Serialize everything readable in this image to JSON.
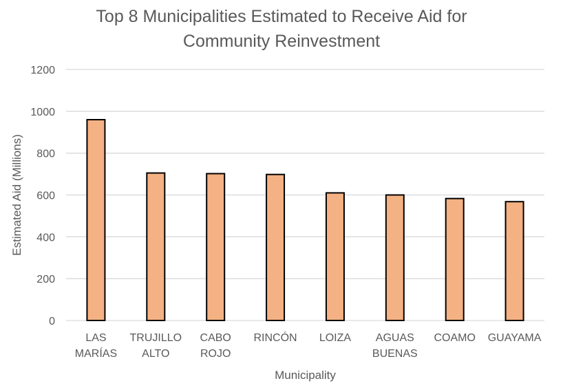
{
  "chart_data": {
    "type": "bar",
    "title_lines": [
      "Top 8 Municipalities Estimated to Receive Aid for",
      "Community Reinvestment"
    ],
    "xlabel": "Municipality",
    "ylabel": "Estimated Aid (Millions)",
    "ylim": [
      0,
      1200
    ],
    "yticks": [
      "0",
      "200",
      "400",
      "600",
      "800",
      "1000",
      "1200"
    ],
    "grid": true,
    "legend": "none",
    "bar_color": "#f4b183",
    "bar_outline": "#000000",
    "categories": [
      [
        "LAS",
        "MARÍAS"
      ],
      [
        "TRUJILLO",
        "ALTO"
      ],
      [
        "CABO",
        "ROJO"
      ],
      [
        "RINCÓN"
      ],
      [
        "LOIZA"
      ],
      [
        "AGUAS",
        "BUENAS"
      ],
      [
        "COAMO"
      ],
      [
        "GUAYAMA"
      ]
    ],
    "values": [
      960,
      705,
      702,
      698,
      610,
      600,
      583,
      568
    ]
  }
}
